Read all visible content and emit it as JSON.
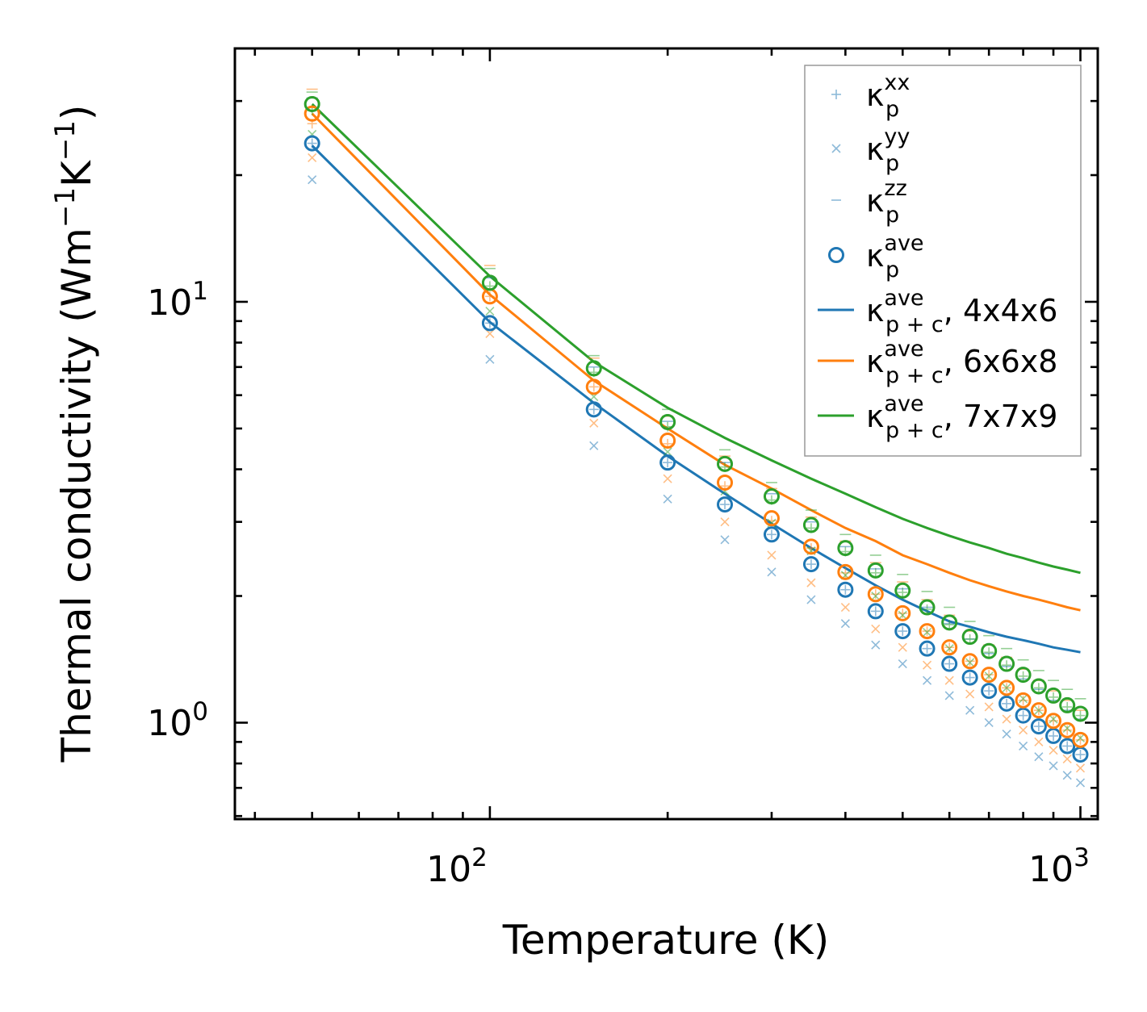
{
  "chart_data": {
    "type": "scatter",
    "xscale": "log",
    "yscale": "log",
    "xlim": [
      37,
      1070
    ],
    "ylim": [
      0.59,
      40
    ],
    "xlabel": "Temperature (K)",
    "ylabel": {
      "main": "Thermal conductivity (Wm",
      "exp1": "−1",
      "mid": "K",
      "exp2": "−1",
      "close": ")"
    },
    "x_ticks": [
      {
        "base": "10",
        "exp": "2"
      },
      {
        "base": "10",
        "exp": "3"
      }
    ],
    "y_ticks": [
      {
        "base": "10",
        "exp": "0"
      },
      {
        "base": "10",
        "exp": "1"
      }
    ],
    "temperatures": [
      50,
      100,
      150,
      200,
      250,
      300,
      350,
      400,
      450,
      500,
      550,
      600,
      650,
      700,
      750,
      800,
      850,
      900,
      950,
      1000
    ],
    "colors": {
      "blue": "#1f77b4",
      "orange": "#ff7f0e",
      "green": "#2ca02c"
    },
    "series": [
      {
        "name": "4x4x6",
        "color": "#1f77b4",
        "kxx": [
          23.8,
          8.9,
          5.55,
          4.15,
          3.3,
          2.8,
          2.38,
          2.07,
          1.84,
          1.65,
          1.5,
          1.38,
          1.28,
          1.19,
          1.11,
          1.04,
          0.98,
          0.93,
          0.88,
          0.84
        ],
        "kyy": [
          19.5,
          7.3,
          4.55,
          3.4,
          2.72,
          2.28,
          1.96,
          1.72,
          1.53,
          1.38,
          1.26,
          1.16,
          1.07,
          1.0,
          0.94,
          0.88,
          0.83,
          0.79,
          0.75,
          0.72
        ],
        "kzz": [
          30.5,
          11.4,
          7.0,
          5.2,
          4.15,
          3.5,
          3.0,
          2.62,
          2.32,
          2.08,
          1.88,
          1.72,
          1.58,
          1.46,
          1.36,
          1.27,
          1.2,
          1.13,
          1.07,
          1.02
        ],
        "kave": [
          23.8,
          8.9,
          5.55,
          4.15,
          3.3,
          2.8,
          2.38,
          2.07,
          1.84,
          1.65,
          1.5,
          1.38,
          1.28,
          1.19,
          1.11,
          1.04,
          0.98,
          0.93,
          0.88,
          0.84
        ],
        "kpc": [
          23.5,
          8.95,
          5.75,
          4.3,
          3.5,
          2.97,
          2.6,
          2.33,
          2.12,
          1.96,
          1.84,
          1.74,
          1.69,
          1.64,
          1.6,
          1.57,
          1.54,
          1.51,
          1.49,
          1.47
        ]
      },
      {
        "name": "6x6x8",
        "color": "#ff7f0e",
        "kxx": [
          26.5,
          10.3,
          6.28,
          4.6,
          3.65,
          3.02,
          2.6,
          2.27,
          2.02,
          1.82,
          1.65,
          1.51,
          1.4,
          1.3,
          1.21,
          1.13,
          1.07,
          1.01,
          0.96,
          0.91
        ],
        "kyy": [
          22.0,
          8.4,
          5.15,
          3.8,
          3.0,
          2.5,
          2.15,
          1.88,
          1.67,
          1.51,
          1.37,
          1.26,
          1.17,
          1.09,
          1.02,
          0.96,
          0.9,
          0.86,
          0.82,
          0.78
        ],
        "kzz": [
          32.0,
          12.2,
          7.35,
          5.35,
          4.3,
          3.6,
          3.08,
          2.7,
          2.4,
          2.16,
          1.96,
          1.8,
          1.65,
          1.53,
          1.43,
          1.34,
          1.26,
          1.19,
          1.13,
          1.07
        ],
        "kave": [
          28.0,
          10.3,
          6.28,
          4.68,
          3.72,
          3.06,
          2.62,
          2.28,
          2.02,
          1.82,
          1.65,
          1.51,
          1.4,
          1.3,
          1.21,
          1.13,
          1.07,
          1.01,
          0.96,
          0.91
        ],
        "kpc": [
          28.0,
          10.4,
          6.5,
          5.0,
          4.1,
          3.6,
          3.2,
          2.9,
          2.7,
          2.5,
          2.38,
          2.27,
          2.18,
          2.11,
          2.05,
          2.0,
          1.96,
          1.92,
          1.88,
          1.85
        ]
      },
      {
        "name": "7x7x9",
        "color": "#2ca02c",
        "kxx": [
          28.5,
          10.9,
          6.8,
          5.05,
          4.05,
          3.38,
          2.9,
          2.55,
          2.27,
          2.04,
          1.86,
          1.71,
          1.58,
          1.47,
          1.37,
          1.29,
          1.21,
          1.15,
          1.09,
          1.04
        ],
        "kyy": [
          25.0,
          9.5,
          5.95,
          4.4,
          3.55,
          2.98,
          2.56,
          2.24,
          2.0,
          1.8,
          1.64,
          1.5,
          1.39,
          1.29,
          1.21,
          1.14,
          1.07,
          1.02,
          0.97,
          0.92
        ],
        "kzz": [
          31.5,
          12.0,
          7.45,
          5.55,
          4.45,
          3.72,
          3.2,
          2.8,
          2.5,
          2.25,
          2.05,
          1.88,
          1.74,
          1.61,
          1.5,
          1.41,
          1.33,
          1.26,
          1.2,
          1.14
        ],
        "kave": [
          29.5,
          11.1,
          6.95,
          5.18,
          4.12,
          3.45,
          2.95,
          2.6,
          2.3,
          2.06,
          1.88,
          1.73,
          1.6,
          1.48,
          1.38,
          1.3,
          1.22,
          1.16,
          1.1,
          1.05
        ],
        "kpc": [
          29.5,
          11.5,
          7.2,
          5.6,
          4.75,
          4.2,
          3.8,
          3.5,
          3.25,
          3.05,
          2.9,
          2.78,
          2.68,
          2.6,
          2.52,
          2.46,
          2.4,
          2.35,
          2.31,
          2.27
        ]
      }
    ],
    "legend": {
      "position": "upper right",
      "entries": [
        {
          "marker": "plus",
          "sym": "κ",
          "sub": "p",
          "sup": "xx",
          "suffix": ""
        },
        {
          "marker": "x",
          "sym": "κ",
          "sub": "p",
          "sup": "yy",
          "suffix": ""
        },
        {
          "marker": "dash",
          "sym": "κ",
          "sub": "p",
          "sup": "zz",
          "suffix": ""
        },
        {
          "marker": "circle",
          "sym": "κ",
          "sub": "p",
          "sup": "ave",
          "suffix": ""
        },
        {
          "marker": "line",
          "color": "#1f77b4",
          "sym": "κ",
          "sub": "p + c",
          "sup": "ave",
          "suffix": ", 4x4x6"
        },
        {
          "marker": "line",
          "color": "#ff7f0e",
          "sym": "κ",
          "sub": "p + c",
          "sup": "ave",
          "suffix": ", 6x6x8"
        },
        {
          "marker": "line",
          "color": "#2ca02c",
          "sym": "κ",
          "sub": "p + c",
          "sup": "ave",
          "suffix": ", 7x7x9"
        }
      ]
    }
  }
}
